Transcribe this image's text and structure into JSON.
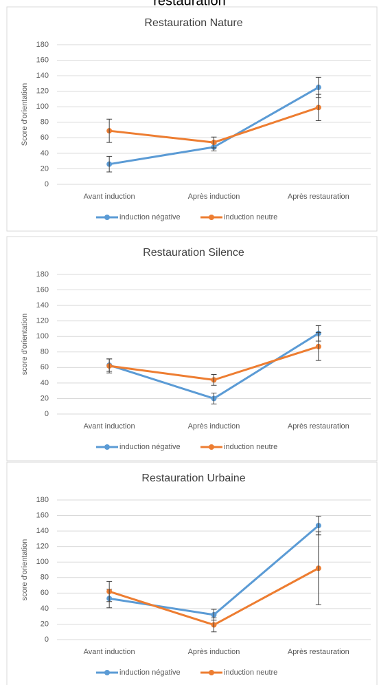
{
  "heading": "restauration",
  "chart_data": [
    {
      "type": "line",
      "title": "Restauration Nature",
      "ylabel": "Score d'orientation",
      "categories": [
        "Avant induction",
        "Après induction",
        "Après restauration"
      ],
      "series": [
        {
          "name": "induction négative",
          "color": "#5b9bd5",
          "values": [
            26,
            48,
            125
          ],
          "errors": [
            10,
            5,
            13
          ]
        },
        {
          "name": "induction neutre",
          "color": "#ed7d31",
          "values": [
            69,
            54,
            99
          ],
          "errors": [
            15,
            7,
            17
          ]
        }
      ],
      "ylim": [
        0,
        180
      ],
      "yticks": [
        0,
        20,
        40,
        60,
        80,
        100,
        120,
        140,
        160,
        180
      ],
      "grid": true,
      "legend": "bottom"
    },
    {
      "type": "line",
      "title": "Restauration Silence",
      "ylabel": "score d'orientation",
      "categories": [
        "Avant induction",
        "Après induction",
        "Après restauration"
      ],
      "series": [
        {
          "name": "induction négative",
          "color": "#5b9bd5",
          "values": [
            63,
            20,
            104
          ],
          "errors": [
            8,
            7,
            10
          ]
        },
        {
          "name": "induction neutre",
          "color": "#ed7d31",
          "values": [
            62,
            44,
            87
          ],
          "errors": [
            9,
            7,
            18
          ]
        }
      ],
      "ylim": [
        0,
        180
      ],
      "yticks": [
        0,
        20,
        40,
        60,
        80,
        100,
        120,
        140,
        160,
        180
      ],
      "grid": true,
      "legend": "bottom"
    },
    {
      "type": "line",
      "title": "Restauration Urbaine",
      "ylabel": "score d'orientation",
      "categories": [
        "Avant induction",
        "Après induction",
        "Après restauration"
      ],
      "series": [
        {
          "name": "induction négative",
          "color": "#5b9bd5",
          "values": [
            53,
            32,
            147
          ],
          "errors": [
            12,
            7,
            12
          ]
        },
        {
          "name": "induction neutre",
          "color": "#ed7d31",
          "values": [
            62,
            19,
            92
          ],
          "errors": [
            13,
            9,
            47
          ]
        }
      ],
      "ylim": [
        0,
        180
      ],
      "yticks": [
        0,
        20,
        40,
        60,
        80,
        100,
        120,
        140,
        160,
        180
      ],
      "grid": true,
      "legend": "bottom"
    }
  ]
}
